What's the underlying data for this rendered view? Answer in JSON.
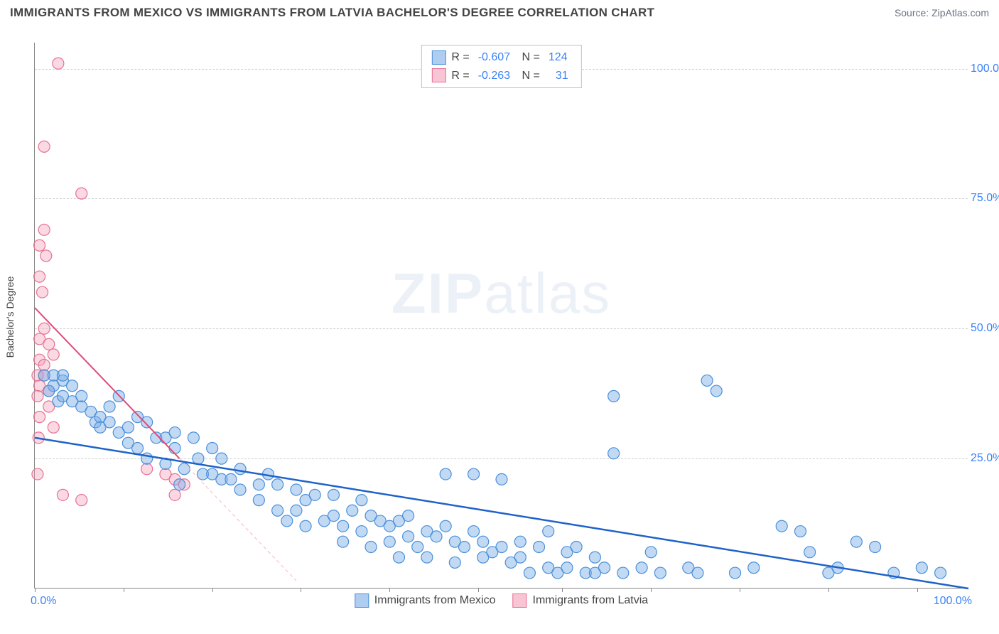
{
  "header": {
    "title": "IMMIGRANTS FROM MEXICO VS IMMIGRANTS FROM LATVIA BACHELOR'S DEGREE CORRELATION CHART",
    "source": "Source: ZipAtlas.com"
  },
  "axes": {
    "ylabel": "Bachelor's Degree",
    "xlim": [
      0,
      100
    ],
    "ylim": [
      0,
      105
    ],
    "yticks": [
      25.0,
      50.0,
      75.0,
      100.0
    ],
    "ytick_labels": [
      "25.0%",
      "50.0%",
      "75.0%",
      "100.0%"
    ],
    "x_label_min": "0.0%",
    "x_label_max": "100.0%",
    "xtick_positions": [
      0,
      9.5,
      19,
      28.5,
      38,
      47.5,
      56.5,
      66,
      75.5,
      85,
      94.5
    ]
  },
  "legend_stats": {
    "series1": {
      "R": "-0.607",
      "N": "124"
    },
    "series2": {
      "R": "-0.263",
      "N": "31"
    }
  },
  "series": {
    "mexico": {
      "label": "Immigrants from Mexico",
      "fill": "rgba(120,170,230,0.45)",
      "stroke": "#4a90d9",
      "swatch_fill": "#aecdf0",
      "swatch_stroke": "#4a90d9",
      "marker_radius": 8,
      "trend": {
        "x1": 0,
        "y1": 29,
        "x2": 100,
        "y2": 0,
        "stroke": "#1e62c9",
        "width": 2.5
      },
      "trend_dash": null,
      "points": [
        [
          1,
          41
        ],
        [
          2,
          41
        ],
        [
          2,
          39
        ],
        [
          3,
          40
        ],
        [
          3,
          41
        ],
        [
          1.5,
          38
        ],
        [
          2.5,
          36
        ],
        [
          3,
          37
        ],
        [
          4,
          39
        ],
        [
          4,
          36
        ],
        [
          5,
          35
        ],
        [
          5,
          37
        ],
        [
          6,
          34
        ],
        [
          6.5,
          32
        ],
        [
          7,
          33
        ],
        [
          7,
          31
        ],
        [
          8,
          35
        ],
        [
          8,
          32
        ],
        [
          9,
          30
        ],
        [
          9,
          37
        ],
        [
          10,
          31
        ],
        [
          10,
          28
        ],
        [
          11,
          33
        ],
        [
          12,
          32
        ],
        [
          11,
          27
        ],
        [
          12,
          25
        ],
        [
          13,
          29
        ],
        [
          14,
          29
        ],
        [
          14,
          24
        ],
        [
          15,
          27
        ],
        [
          15,
          30
        ],
        [
          16,
          23
        ],
        [
          17,
          29
        ],
        [
          17.5,
          25
        ],
        [
          15.5,
          20
        ],
        [
          18,
          22
        ],
        [
          19,
          27
        ],
        [
          19,
          22
        ],
        [
          20,
          25
        ],
        [
          20,
          21
        ],
        [
          21,
          21
        ],
        [
          22,
          23
        ],
        [
          22,
          19
        ],
        [
          24,
          20
        ],
        [
          24,
          17
        ],
        [
          25,
          22
        ],
        [
          26,
          20
        ],
        [
          26,
          15
        ],
        [
          27,
          13
        ],
        [
          28,
          19
        ],
        [
          28,
          15
        ],
        [
          29,
          17
        ],
        [
          29,
          12
        ],
        [
          30,
          18
        ],
        [
          31,
          13
        ],
        [
          32,
          18
        ],
        [
          32,
          14
        ],
        [
          33,
          12
        ],
        [
          33,
          9
        ],
        [
          34,
          15
        ],
        [
          35,
          17
        ],
        [
          35,
          11
        ],
        [
          36,
          14
        ],
        [
          36,
          8
        ],
        [
          37,
          13
        ],
        [
          38,
          12
        ],
        [
          38,
          9
        ],
        [
          39,
          13
        ],
        [
          39,
          6
        ],
        [
          40,
          14
        ],
        [
          40,
          10
        ],
        [
          41,
          8
        ],
        [
          42,
          11
        ],
        [
          42,
          6
        ],
        [
          43,
          10
        ],
        [
          44,
          22
        ],
        [
          44,
          12
        ],
        [
          45,
          9
        ],
        [
          45,
          5
        ],
        [
          46,
          8
        ],
        [
          47,
          11
        ],
        [
          47,
          22
        ],
        [
          48,
          6
        ],
        [
          48,
          9
        ],
        [
          49,
          7
        ],
        [
          50,
          8
        ],
        [
          50,
          21
        ],
        [
          51,
          5
        ],
        [
          52,
          9
        ],
        [
          52,
          6
        ],
        [
          53,
          3
        ],
        [
          54,
          8
        ],
        [
          55,
          4
        ],
        [
          55,
          11
        ],
        [
          56,
          3
        ],
        [
          57,
          7
        ],
        [
          57,
          4
        ],
        [
          58,
          8
        ],
        [
          59,
          3
        ],
        [
          60,
          6
        ],
        [
          60,
          3
        ],
        [
          61,
          4
        ],
        [
          62,
          37
        ],
        [
          62,
          26
        ],
        [
          63,
          3
        ],
        [
          65,
          4
        ],
        [
          66,
          7
        ],
        [
          67,
          3
        ],
        [
          70,
          4
        ],
        [
          71,
          3
        ],
        [
          72,
          40
        ],
        [
          73,
          38
        ],
        [
          75,
          3
        ],
        [
          77,
          4
        ],
        [
          80,
          12
        ],
        [
          82,
          11
        ],
        [
          83,
          7
        ],
        [
          85,
          3
        ],
        [
          86,
          4
        ],
        [
          88,
          9
        ],
        [
          90,
          8
        ],
        [
          92,
          3
        ],
        [
          95,
          4
        ],
        [
          97,
          3
        ]
      ]
    },
    "latvia": {
      "label": "Immigrants from Latvia",
      "fill": "rgba(245,160,185,0.4)",
      "stroke": "#e77095",
      "swatch_fill": "#f7c5d4",
      "swatch_stroke": "#e77095",
      "marker_radius": 8,
      "trend": {
        "x1": 0,
        "y1": 54,
        "x2": 15.5,
        "y2": 25,
        "stroke": "#e04a7a",
        "width": 2
      },
      "trend_dash": {
        "x1": 15.5,
        "y1": 25,
        "x2": 28,
        "y2": 1.5,
        "stroke": "#f4b7c8",
        "width": 1,
        "dash": "5,4"
      },
      "points": [
        [
          2.5,
          101
        ],
        [
          1,
          85
        ],
        [
          5,
          76
        ],
        [
          1,
          69
        ],
        [
          0.5,
          66
        ],
        [
          1.2,
          64
        ],
        [
          0.5,
          60
        ],
        [
          0.8,
          57
        ],
        [
          1,
          50
        ],
        [
          0.5,
          48
        ],
        [
          1.5,
          47
        ],
        [
          2,
          45
        ],
        [
          0.5,
          44
        ],
        [
          1,
          43
        ],
        [
          0.3,
          41
        ],
        [
          1,
          41
        ],
        [
          0.5,
          39
        ],
        [
          1.5,
          38
        ],
        [
          0.3,
          37
        ],
        [
          1.5,
          35
        ],
        [
          0.5,
          33
        ],
        [
          2,
          31
        ],
        [
          0.4,
          29
        ],
        [
          0.3,
          22
        ],
        [
          3,
          18
        ],
        [
          5,
          17
        ],
        [
          12,
          23
        ],
        [
          14,
          22
        ],
        [
          15,
          21
        ],
        [
          15,
          18
        ],
        [
          16,
          20
        ]
      ]
    }
  },
  "watermark": {
    "bold": "ZIP",
    "rest": "atlas"
  },
  "colors": {
    "title": "#444444",
    "source": "#6b7280",
    "axis": "#888888",
    "grid": "#d0d0d0",
    "tick_text": "#3b82f6",
    "background": "#ffffff"
  }
}
